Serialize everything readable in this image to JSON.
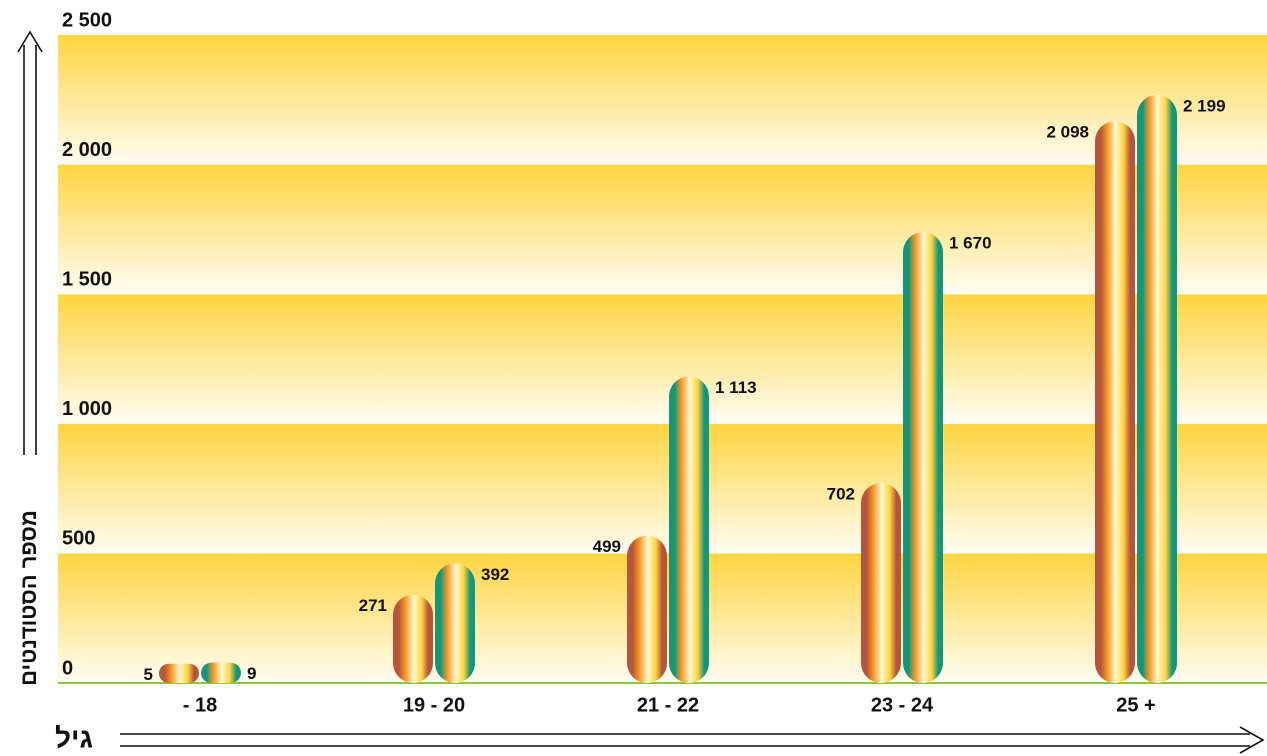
{
  "chart_data": {
    "type": "bar",
    "y_label": "מספר הסטודנטים",
    "x_label": "גיל",
    "categories": [
      "- 18",
      "19 - 20",
      "21 - 22",
      "23 - 24",
      "25 +"
    ],
    "series": [
      {
        "color": "#b4553c",
        "values": [
          5,
          271,
          499,
          702,
          2098
        ],
        "value_labels": [
          "5",
          "271",
          "499",
          "702",
          "2 098"
        ]
      },
      {
        "color": "#12977a",
        "values": [
          9,
          392,
          1113,
          1670,
          2199
        ],
        "value_labels": [
          "9",
          "392",
          "1 113",
          "1 670",
          "2 199"
        ]
      }
    ],
    "ylim": [
      0,
      2500
    ],
    "yticks": [
      {
        "value": 0,
        "label": "0"
      },
      {
        "value": 500,
        "label": "500"
      },
      {
        "value": 1000,
        "label": "1 000"
      },
      {
        "value": 1500,
        "label": "1 500"
      },
      {
        "value": 2000,
        "label": "2 000"
      },
      {
        "value": 2500,
        "label": "2 500"
      }
    ],
    "grid": true
  }
}
